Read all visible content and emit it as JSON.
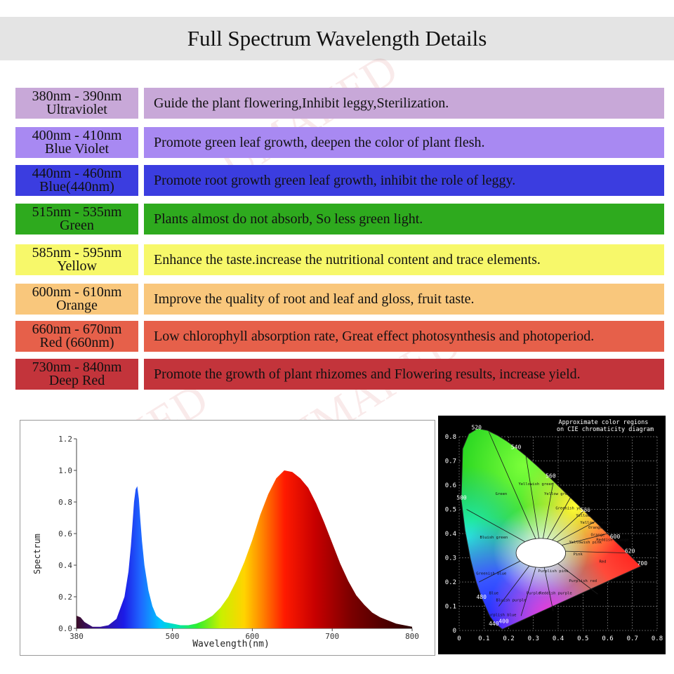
{
  "header": {
    "title": "Full Spectrum Wavelength Details"
  },
  "watermark": "UMAKED",
  "bands": [
    {
      "range": "380nm - 390nm",
      "name": "Ultraviolet",
      "desc": "Guide the plant flowering,Inhibit leggy,Sterilization.",
      "color": "#c8a8d8"
    },
    {
      "range": "400nm - 410nm",
      "name": "Blue Violet",
      "desc": "Promote green leaf growth, deepen the color of plant flesh.",
      "color": "#a889f2"
    },
    {
      "range": "440nm - 460nm",
      "name": "Blue(440nm)",
      "desc": "Promote root growth  green leaf growth, inhibit the role of leggy.",
      "color": "#3b3de0"
    },
    {
      "range": "515nm - 535nm",
      "name": "Green",
      "desc": "Plants almost do not absorb, So less green light.",
      "color": "#2eaa1e"
    },
    {
      "range": "585nm - 595nm",
      "name": "Yellow",
      "desc": "Enhance the taste.increase the nutritional content and trace elements.",
      "color": "#f7f86a"
    },
    {
      "range": "600nm - 610nm",
      "name": "Orange",
      "desc": "Improve the quality of root and leaf and gloss, fruit taste.",
      "color": "#f9c77c"
    },
    {
      "range": "660nm - 670nm",
      "name": "Red (660nm)",
      "desc": "Low chlorophyll absorption rate, Great effect photosynthesis and photoperiod.",
      "color": "#e6604a"
    },
    {
      "range": "730nm - 840nm",
      "name": "Deep Red",
      "desc": "Promote the growth of plant rhizomes and Flowering results, increase yield.",
      "color": "#c3343b"
    }
  ],
  "chart_data": [
    {
      "type": "area",
      "title": "",
      "xlabel": "Wavelength(nm)",
      "ylabel": "Spectrum",
      "xlim": [
        380,
        800
      ],
      "ylim": [
        0,
        1.2
      ],
      "xticks": [
        380,
        500,
        600,
        700,
        800
      ],
      "yticks": [
        "0.0",
        "0.2",
        "0.4",
        "0.6",
        "0.8",
        "1.0",
        "1.2"
      ],
      "series": [
        {
          "x": [
            380,
            385,
            390,
            400,
            410,
            420,
            430,
            440,
            445,
            448,
            450,
            452,
            454,
            456,
            458,
            460,
            462,
            465,
            470,
            475,
            480,
            490,
            500,
            510,
            520,
            530,
            540,
            550,
            560,
            570,
            580,
            590,
            600,
            610,
            620,
            630,
            640,
            650,
            660,
            670,
            680,
            690,
            700,
            710,
            720,
            730,
            740,
            750,
            760,
            770,
            780,
            790,
            800
          ],
          "y": [
            0.08,
            0.07,
            0.04,
            0.01,
            0.01,
            0.02,
            0.06,
            0.2,
            0.36,
            0.52,
            0.66,
            0.8,
            0.88,
            0.9,
            0.82,
            0.68,
            0.55,
            0.4,
            0.24,
            0.14,
            0.08,
            0.04,
            0.03,
            0.02,
            0.02,
            0.03,
            0.05,
            0.08,
            0.13,
            0.2,
            0.3,
            0.42,
            0.56,
            0.72,
            0.85,
            0.95,
            1.0,
            0.99,
            0.95,
            0.89,
            0.79,
            0.67,
            0.54,
            0.41,
            0.3,
            0.21,
            0.15,
            0.1,
            0.07,
            0.05,
            0.03,
            0.02,
            0.01
          ]
        }
      ]
    },
    {
      "type": "scatter",
      "title": "Approximate color regions on CIE chromaticity diagram",
      "xlim": [
        0,
        0.8
      ],
      "ylim": [
        0,
        0.8
      ],
      "xticks": [
        "0",
        "0.1",
        "0.2",
        "0.3",
        "0.4",
        "0.5",
        "0.6",
        "0.7",
        "0.8"
      ],
      "yticks": [
        "0",
        "0.1",
        "0.2",
        "0.3",
        "0.4",
        "0.5",
        "0.6",
        "0.7",
        "0.8"
      ],
      "wavelength_labels": [
        {
          "label": "400",
          "x": 0.18,
          "y": 0.03
        },
        {
          "label": "440",
          "x": 0.14,
          "y": 0.02
        },
        {
          "label": "480",
          "x": 0.09,
          "y": 0.13
        },
        {
          "label": "500",
          "x": 0.01,
          "y": 0.54
        },
        {
          "label": "520",
          "x": 0.07,
          "y": 0.83
        },
        {
          "label": "540",
          "x": 0.23,
          "y": 0.75
        },
        {
          "label": "560",
          "x": 0.37,
          "y": 0.63
        },
        {
          "label": "580",
          "x": 0.51,
          "y": 0.49
        },
        {
          "label": "600",
          "x": 0.63,
          "y": 0.38
        },
        {
          "label": "620",
          "x": 0.69,
          "y": 0.32
        },
        {
          "label": "700",
          "x": 0.74,
          "y": 0.27
        }
      ],
      "region_labels": [
        {
          "label": "Green",
          "x": 0.17,
          "y": 0.56
        },
        {
          "label": "Yellowish green",
          "x": 0.31,
          "y": 0.6
        },
        {
          "label": "Yellow green",
          "x": 0.4,
          "y": 0.56
        },
        {
          "label": "Greenish yellow",
          "x": 0.46,
          "y": 0.5
        },
        {
          "label": "Yellow",
          "x": 0.5,
          "y": 0.47
        },
        {
          "label": "Yellow orange",
          "x": 0.55,
          "y": 0.44
        },
        {
          "label": "Orange",
          "x": 0.55,
          "y": 0.42
        },
        {
          "label": "Orange",
          "x": 0.56,
          "y": 0.39
        },
        {
          "label": "Reddish orange",
          "x": 0.62,
          "y": 0.37
        },
        {
          "label": "Yellowish pink",
          "x": 0.51,
          "y": 0.36
        },
        {
          "label": "Pink",
          "x": 0.48,
          "y": 0.31
        },
        {
          "label": "Red",
          "x": 0.58,
          "y": 0.28
        },
        {
          "label": "Bluish green",
          "x": 0.14,
          "y": 0.38
        },
        {
          "label": "Greenish blue",
          "x": 0.13,
          "y": 0.23
        },
        {
          "label": "Blue",
          "x": 0.14,
          "y": 0.15
        },
        {
          "label": "Bluish purple",
          "x": 0.21,
          "y": 0.12
        },
        {
          "label": "Purple",
          "x": 0.3,
          "y": 0.15
        },
        {
          "label": "Purplish pink",
          "x": 0.38,
          "y": 0.24
        },
        {
          "label": "Reddish purple",
          "x": 0.39,
          "y": 0.15
        },
        {
          "label": "Purplish red",
          "x": 0.5,
          "y": 0.2
        },
        {
          "label": "Purplish blue",
          "x": 0.17,
          "y": 0.06
        }
      ]
    }
  ]
}
